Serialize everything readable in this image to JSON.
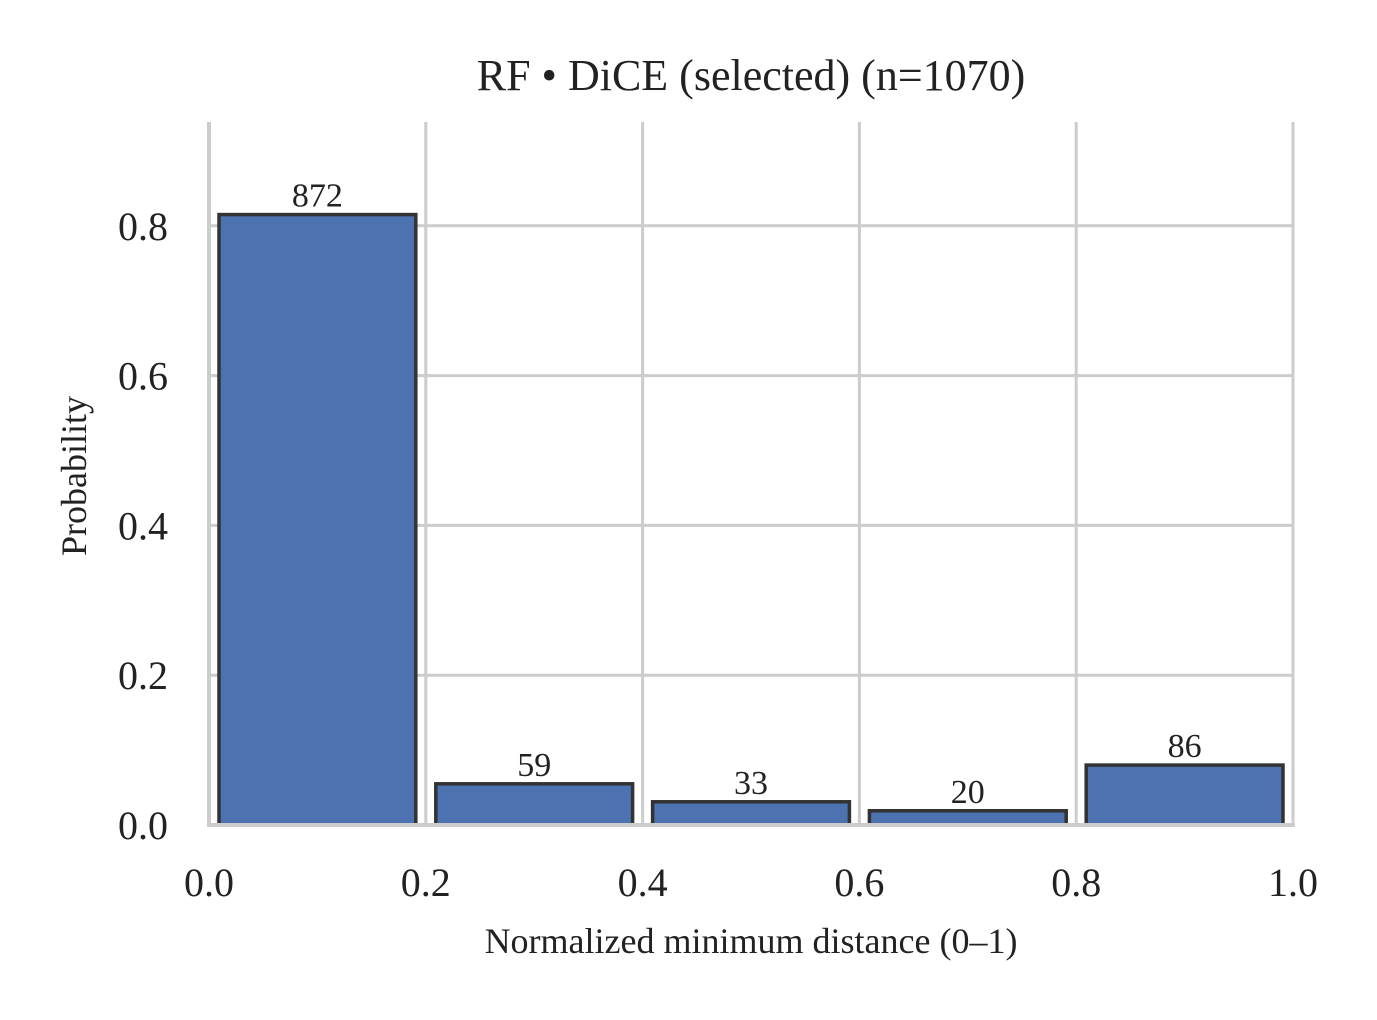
{
  "chart_data": {
    "type": "bar",
    "title": "RF • DiCE (selected)  (n=1070)",
    "xlabel": "Normalized minimum distance (0–1)",
    "ylabel": "Probability",
    "bins": [
      [
        0.0,
        0.2
      ],
      [
        0.2,
        0.4
      ],
      [
        0.4,
        0.6
      ],
      [
        0.6,
        0.8
      ],
      [
        0.8,
        1.0
      ]
    ],
    "counts": [
      872,
      59,
      33,
      20,
      86
    ],
    "values": [
      0.815,
      0.055,
      0.031,
      0.019,
      0.08
    ],
    "count_labels": [
      "872",
      "59",
      "33",
      "20",
      "86"
    ],
    "xlim": [
      0.0,
      1.0
    ],
    "ylim": [
      0.0,
      0.8
    ],
    "xticks": [
      0.0,
      0.2,
      0.4,
      0.6,
      0.8,
      1.0
    ],
    "xtick_labels": [
      "0.0",
      "0.2",
      "0.4",
      "0.6",
      "0.8",
      "1.0"
    ],
    "yticks": [
      0.0,
      0.2,
      0.4,
      0.6,
      0.8
    ],
    "ytick_labels": [
      "0.0",
      "0.2",
      "0.4",
      "0.6",
      "0.8"
    ],
    "grid": true,
    "colors": {
      "bar_fill": "#4c72b0",
      "bar_edge": "#333333",
      "grid": "#cccccc"
    }
  }
}
